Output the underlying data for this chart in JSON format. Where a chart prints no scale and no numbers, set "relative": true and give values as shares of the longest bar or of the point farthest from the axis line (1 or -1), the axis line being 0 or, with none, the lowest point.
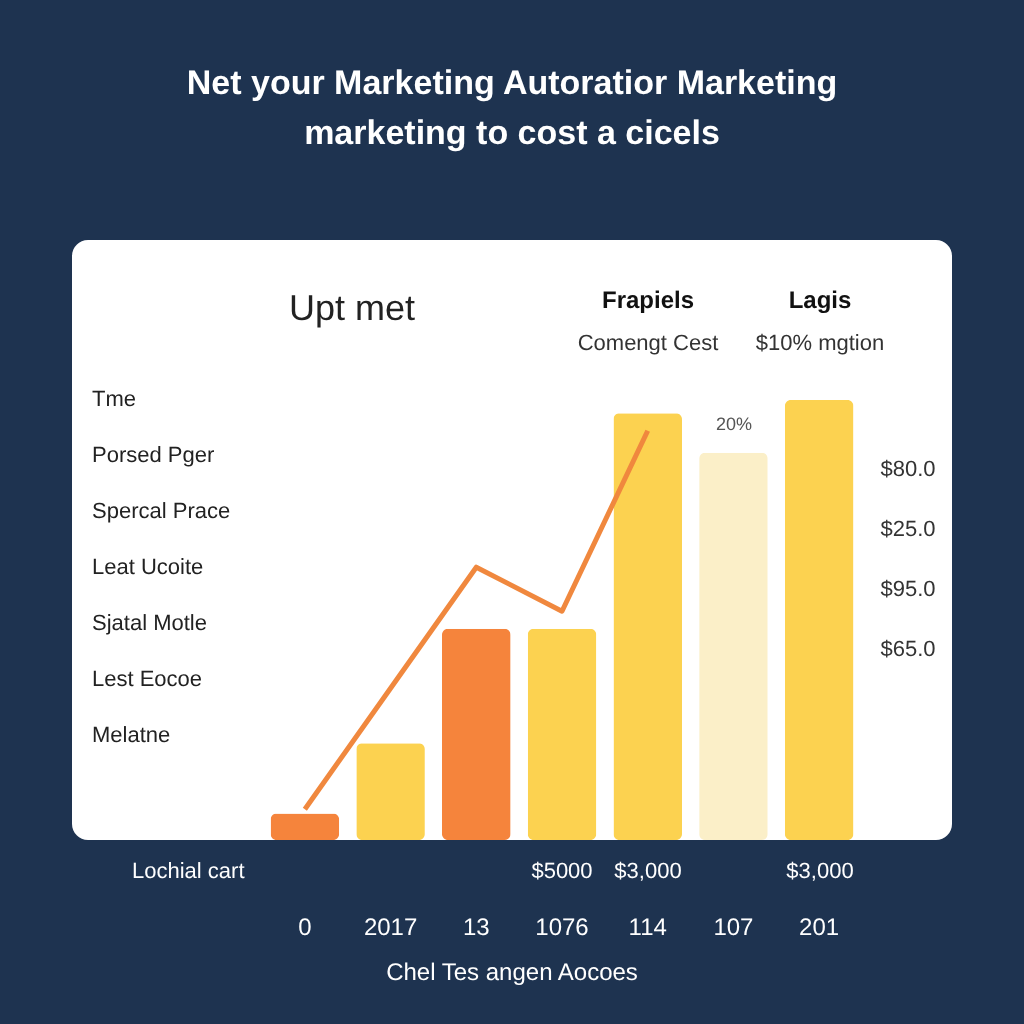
{
  "chart_data": {
    "type": "bar",
    "relative": true,
    "title": "Net your Marketing Autoratior Marketing\nmarketing to cost a cicels",
    "categories": [
      "0",
      "2017",
      "13",
      "1076",
      "114",
      "107",
      "201"
    ],
    "series": [
      {
        "colors": [
          "#f5843c",
          "#fcd250",
          "#f5843c",
          "#fcd250",
          "#fcd250",
          "#fbefc8",
          "#fcd250"
        ],
        "values": [
          0.06,
          0.22,
          0.48,
          0.48,
          0.97,
          0.88,
          1.0
        ]
      },
      {
        "type": "line",
        "color": "#f0883e",
        "values": [
          0.07,
          0.345,
          0.62,
          0.52,
          0.93,
          null,
          null
        ]
      }
    ],
    "annotations": [
      "Upt met",
      "Frapiels",
      "Lagis",
      "Comengt Cest",
      "$10% mgtion",
      "Tme",
      "Porsed Pger",
      "Spercal Prace",
      "Leat Ucoite",
      "Sjatal Motle",
      "Lest Eocoe",
      "Melatne",
      "20%",
      "$80.0",
      "$25.0",
      "$95.0",
      "$65.0",
      "Lochial cart",
      "$5000",
      "$3,000",
      "$3,000",
      "Chel Tes angen Aocoes"
    ],
    "grid": false
  }
}
